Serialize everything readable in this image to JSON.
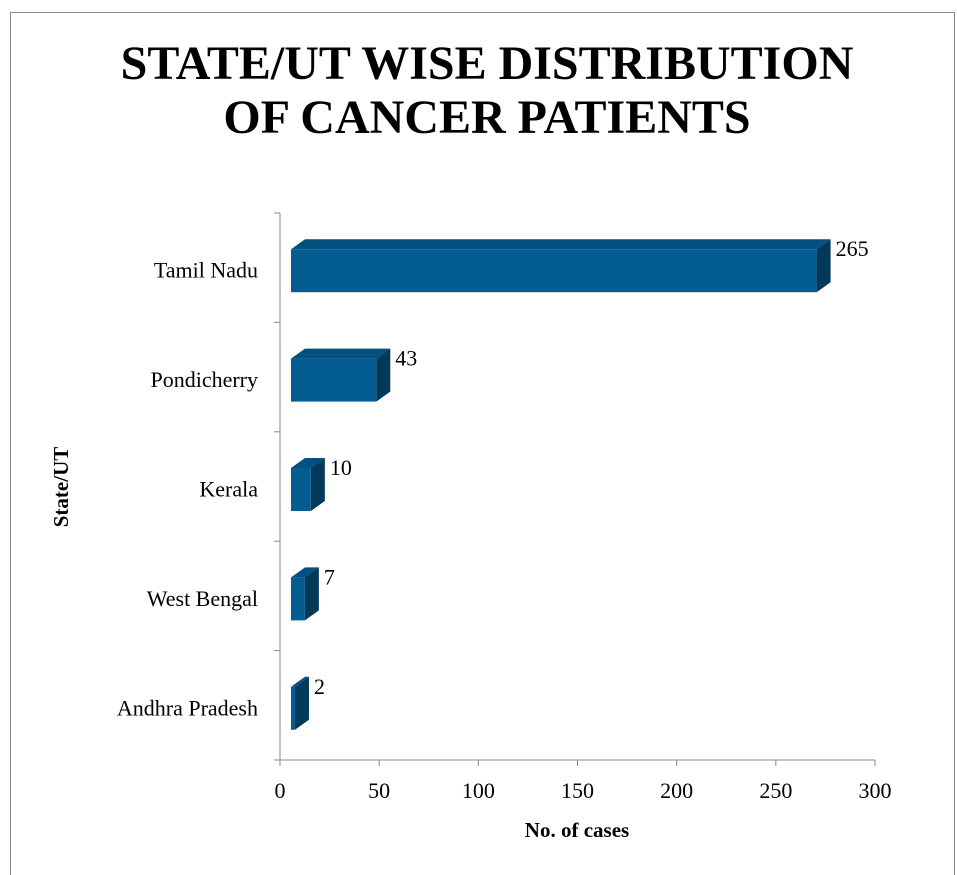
{
  "chart_data": {
    "type": "bar3d_horizontal",
    "title": [
      "STATE/UT WISE DISTRIBUTION",
      "OF CANCER PATIENTS"
    ],
    "x_label": "No. of cases",
    "y_label": "State/UT",
    "categories": [
      "Tamil Nadu",
      "Pondicherry",
      "Kerala",
      "West Bengal",
      "Andhra Pradesh"
    ],
    "values": [
      265,
      43,
      10,
      7,
      2
    ],
    "color": "#035d93",
    "xlim": [
      0,
      300
    ],
    "xticks": [
      0,
      50,
      100,
      150,
      200,
      250,
      300
    ]
  }
}
